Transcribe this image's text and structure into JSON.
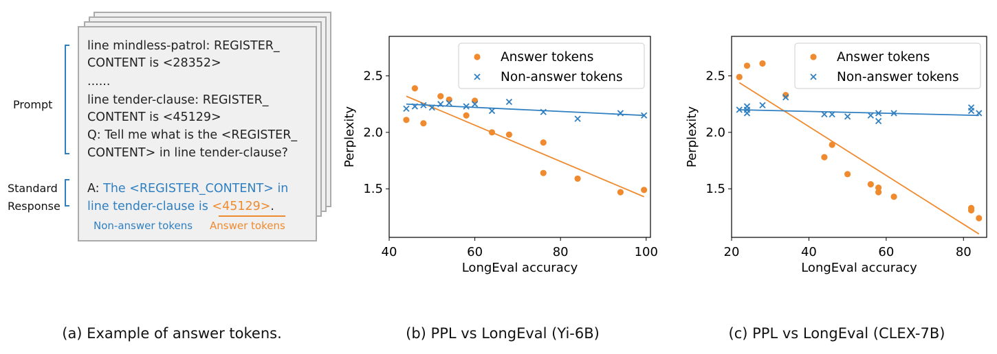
{
  "panel_a": {
    "lines": [
      "line mindless-patrol: REGISTER_",
      "CONTENT is <28352>",
      "......",
      "line tender-clause: REGISTER_",
      "CONTENT is <45129>",
      "Q: Tell me what is the <REGISTER_",
      "CONTENT> in line tender-clause?"
    ],
    "answer_prefix": "A: ",
    "answer_line1": "The <REGISTER_CONTENT> in",
    "answer_line2": "line tender-clause is ",
    "answer_value": "<45129>",
    "answer_period": ".",
    "non_answer_label": "Non-answer tokens",
    "answer_label": "Answer tokens",
    "prompt_label": "Prompt",
    "standard_label": "Standard",
    "response_label": "Response",
    "colors": {
      "blue": "#2f7fc1",
      "orange": "#ef8a2f"
    }
  },
  "captions": {
    "a": "(a) Example of answer tokens.",
    "b": "(b) PPL vs LongEval (Yi-6B)",
    "c": "(c) PPL vs LongEval (CLEX-7B)"
  },
  "chart_data": [
    {
      "type": "scatter",
      "xlabel": "LongEval accuracy",
      "ylabel": "Perplexity",
      "xlim": [
        40,
        101
      ],
      "ylim": [
        1.07,
        2.85
      ],
      "xticks": [
        40,
        60,
        80,
        100
      ],
      "yticks": [
        1.5,
        2.0,
        2.5
      ],
      "legend": "top-right",
      "grid": false,
      "series": [
        {
          "name": "Answer tokens",
          "marker": "circle",
          "color": "#ef8a2f",
          "points": [
            [
              44,
              2.11
            ],
            [
              46,
              2.39
            ],
            [
              48,
              2.08
            ],
            [
              52,
              2.32
            ],
            [
              54,
              2.29
            ],
            [
              58,
              2.15
            ],
            [
              60,
              2.28
            ],
            [
              64,
              2.0
            ],
            [
              68,
              1.98
            ],
            [
              76,
              1.91
            ],
            [
              76,
              1.64
            ],
            [
              84,
              1.59
            ],
            [
              94,
              1.47
            ],
            [
              99.5,
              1.49
            ]
          ],
          "trend": [
            [
              44,
              2.32
            ],
            [
              99.5,
              1.43
            ]
          ]
        },
        {
          "name": "Non-answer tokens",
          "marker": "x",
          "color": "#2f7fc1",
          "points": [
            [
              44,
              2.21
            ],
            [
              46,
              2.23
            ],
            [
              48,
              2.24
            ],
            [
              50,
              2.22
            ],
            [
              52,
              2.25
            ],
            [
              54,
              2.26
            ],
            [
              58,
              2.23
            ],
            [
              60,
              2.25
            ],
            [
              64,
              2.19
            ],
            [
              68,
              2.27
            ],
            [
              76,
              2.18
            ],
            [
              84,
              2.12
            ],
            [
              94,
              2.17
            ],
            [
              99.5,
              2.15
            ]
          ],
          "trend": [
            [
              44,
              2.25
            ],
            [
              99.5,
              2.15
            ]
          ]
        }
      ]
    },
    {
      "type": "scatter",
      "xlabel": "LongEval accuracy",
      "ylabel": "Perplexity",
      "xlim": [
        20,
        86
      ],
      "ylim": [
        1.07,
        2.85
      ],
      "xticks": [
        20,
        40,
        60,
        80
      ],
      "yticks": [
        1.5,
        2.0,
        2.5
      ],
      "legend": "top-right",
      "grid": false,
      "series": [
        {
          "name": "Answer tokens",
          "marker": "circle",
          "color": "#ef8a2f",
          "points": [
            [
              22,
              2.49
            ],
            [
              24,
              2.59
            ],
            [
              28,
              2.61
            ],
            [
              34,
              2.33
            ],
            [
              44,
              1.78
            ],
            [
              46,
              1.89
            ],
            [
              50,
              1.63
            ],
            [
              56,
              1.54
            ],
            [
              58,
              1.51
            ],
            [
              58,
              1.47
            ],
            [
              62,
              1.43
            ],
            [
              82,
              1.33
            ],
            [
              82,
              1.31
            ],
            [
              84,
              1.24
            ]
          ],
          "trend": [
            [
              22,
              2.44
            ],
            [
              84,
              1.1
            ]
          ]
        },
        {
          "name": "Non-answer tokens",
          "marker": "x",
          "color": "#2f7fc1",
          "points": [
            [
              22,
              2.2
            ],
            [
              24,
              2.23
            ],
            [
              24,
              2.17
            ],
            [
              24,
              2.2
            ],
            [
              28,
              2.24
            ],
            [
              34,
              2.31
            ],
            [
              44,
              2.16
            ],
            [
              46,
              2.16
            ],
            [
              50,
              2.14
            ],
            [
              56,
              2.15
            ],
            [
              58,
              2.1
            ],
            [
              58,
              2.17
            ],
            [
              62,
              2.17
            ],
            [
              82,
              2.22
            ],
            [
              82,
              2.19
            ],
            [
              84,
              2.17
            ]
          ],
          "trend": [
            [
              22,
              2.2
            ],
            [
              84,
              2.15
            ]
          ]
        }
      ]
    }
  ]
}
